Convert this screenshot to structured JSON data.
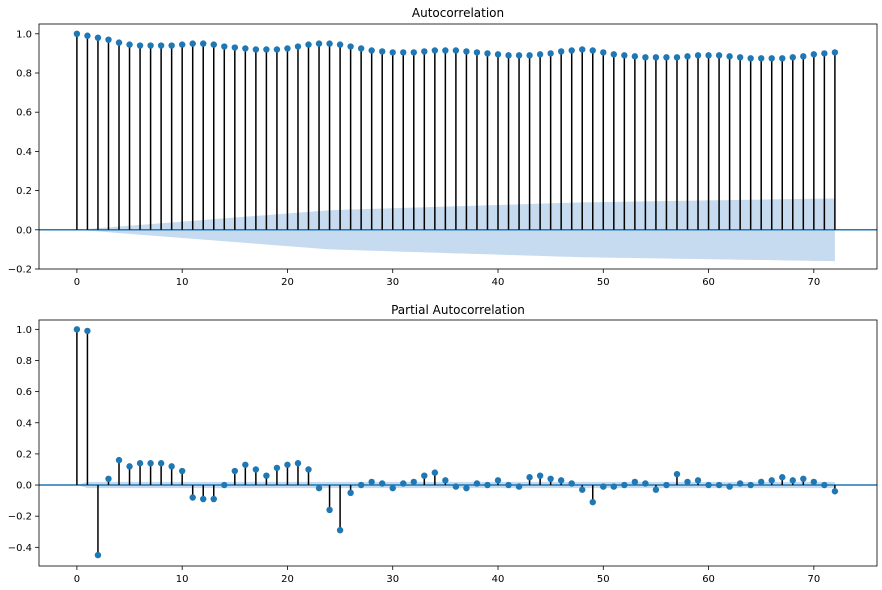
{
  "chart_data": [
    {
      "type": "stem",
      "title": "Autocorrelation",
      "xlabel": "",
      "ylabel": "",
      "xlim": [
        -3.6,
        76
      ],
      "ylim": [
        -0.2,
        1.05
      ],
      "xticks": [
        0,
        10,
        20,
        30,
        40,
        50,
        60,
        70
      ],
      "yticks": [
        -0.2,
        0.0,
        0.2,
        0.4,
        0.6,
        0.8,
        1.0
      ],
      "xtick_labels": [
        "0",
        "10",
        "20",
        "30",
        "40",
        "50",
        "60",
        "70"
      ],
      "ytick_labels": [
        "−0.2",
        "0.0",
        "0.2",
        "0.4",
        "0.6",
        "0.8",
        "1.0"
      ],
      "grid": false,
      "confidence_band": {
        "x_start": 0,
        "x_end": 72,
        "upper": [
          0.0,
          0.1,
          0.14,
          0.16
        ],
        "upper_at_lags": [
          0,
          24,
          48,
          72
        ]
      },
      "x": [
        0,
        1,
        2,
        3,
        4,
        5,
        6,
        7,
        8,
        9,
        10,
        11,
        12,
        13,
        14,
        15,
        16,
        17,
        18,
        19,
        20,
        21,
        22,
        23,
        24,
        25,
        26,
        27,
        28,
        29,
        30,
        31,
        32,
        33,
        34,
        35,
        36,
        37,
        38,
        39,
        40,
        41,
        42,
        43,
        44,
        45,
        46,
        47,
        48,
        49,
        50,
        51,
        52,
        53,
        54,
        55,
        56,
        57,
        58,
        59,
        60,
        61,
        62,
        63,
        64,
        65,
        66,
        67,
        68,
        69,
        70,
        71,
        72
      ],
      "values": [
        1.0,
        0.99,
        0.98,
        0.97,
        0.955,
        0.945,
        0.94,
        0.94,
        0.94,
        0.94,
        0.945,
        0.95,
        0.95,
        0.945,
        0.935,
        0.93,
        0.925,
        0.92,
        0.92,
        0.92,
        0.925,
        0.935,
        0.945,
        0.95,
        0.95,
        0.945,
        0.935,
        0.925,
        0.915,
        0.91,
        0.905,
        0.905,
        0.905,
        0.91,
        0.915,
        0.915,
        0.915,
        0.91,
        0.905,
        0.9,
        0.895,
        0.89,
        0.89,
        0.89,
        0.895,
        0.9,
        0.91,
        0.915,
        0.92,
        0.915,
        0.905,
        0.895,
        0.89,
        0.885,
        0.88,
        0.88,
        0.88,
        0.88,
        0.885,
        0.89,
        0.89,
        0.89,
        0.885,
        0.88,
        0.875,
        0.875,
        0.875,
        0.875,
        0.88,
        0.885,
        0.895,
        0.9,
        0.905
      ]
    },
    {
      "type": "stem",
      "title": "Partial Autocorrelation",
      "xlabel": "",
      "ylabel": "",
      "xlim": [
        -3.6,
        76
      ],
      "ylim": [
        -0.52,
        1.06
      ],
      "xticks": [
        0,
        10,
        20,
        30,
        40,
        50,
        60,
        70
      ],
      "yticks": [
        -0.4,
        -0.2,
        0.0,
        0.2,
        0.4,
        0.6,
        0.8,
        1.0
      ],
      "xtick_labels": [
        "0",
        "10",
        "20",
        "30",
        "40",
        "50",
        "60",
        "70"
      ],
      "ytick_labels": [
        "−0.4",
        "−0.2",
        "0.0",
        "0.2",
        "0.4",
        "0.6",
        "0.8",
        "1.0"
      ],
      "grid": false,
      "confidence_band": {
        "x_start": 0,
        "x_end": 72,
        "upper": [
          0.0,
          0.02,
          0.02,
          0.02
        ],
        "upper_at_lags": [
          0,
          1,
          2,
          72
        ]
      },
      "x": [
        0,
        1,
        2,
        3,
        4,
        5,
        6,
        7,
        8,
        9,
        10,
        11,
        12,
        13,
        14,
        15,
        16,
        17,
        18,
        19,
        20,
        21,
        22,
        23,
        24,
        25,
        26,
        27,
        28,
        29,
        30,
        31,
        32,
        33,
        34,
        35,
        36,
        37,
        38,
        39,
        40,
        41,
        42,
        43,
        44,
        45,
        46,
        47,
        48,
        49,
        50,
        51,
        52,
        53,
        54,
        55,
        56,
        57,
        58,
        59,
        60,
        61,
        62,
        63,
        64,
        65,
        66,
        67,
        68,
        69,
        70,
        71,
        72
      ],
      "values": [
        1.0,
        0.99,
        -0.45,
        0.04,
        0.16,
        0.12,
        0.14,
        0.14,
        0.14,
        0.12,
        0.09,
        -0.08,
        -0.09,
        -0.09,
        0.0,
        0.09,
        0.13,
        0.1,
        0.06,
        0.11,
        0.13,
        0.14,
        0.1,
        -0.02,
        -0.16,
        -0.29,
        -0.05,
        0.0,
        0.02,
        0.01,
        -0.02,
        0.01,
        0.02,
        0.06,
        0.08,
        0.03,
        -0.01,
        -0.02,
        0.01,
        0.0,
        0.03,
        0.0,
        -0.01,
        0.05,
        0.06,
        0.04,
        0.03,
        0.01,
        -0.03,
        -0.11,
        -0.01,
        -0.01,
        0.0,
        0.02,
        0.01,
        -0.03,
        0.0,
        0.07,
        0.02,
        0.03,
        0.0,
        0.0,
        -0.01,
        0.01,
        0.0,
        0.02,
        0.03,
        0.05,
        0.03,
        0.04,
        0.02,
        0.0,
        -0.04
      ]
    }
  ],
  "colors": {
    "marker": "#1f77b4",
    "stem": "#000000",
    "zero_line": "#1f77b4",
    "band": "#c6dbef",
    "axis": "#000000"
  }
}
